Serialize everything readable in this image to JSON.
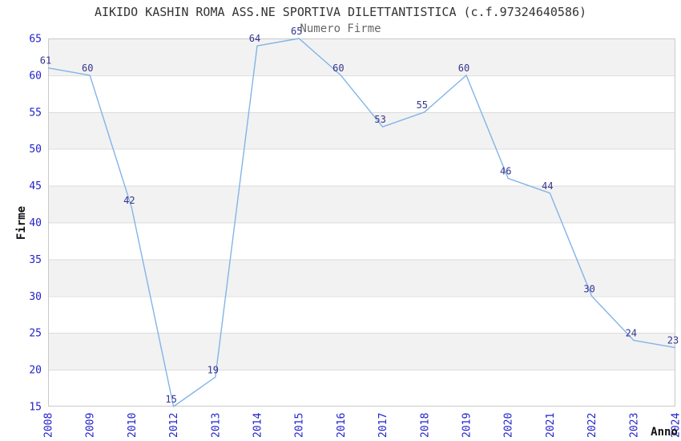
{
  "chart_data": {
    "type": "line",
    "title": "AIKIDO KASHIN ROMA ASS.NE SPORTIVA DILETTANTISTICA (c.f.97324640586)",
    "subtitle": "Numero Firme",
    "xlabel": "Anno",
    "ylabel": "Firme",
    "categories": [
      "2008",
      "2009",
      "2010",
      "2012",
      "2013",
      "2014",
      "2015",
      "2016",
      "2017",
      "2018",
      "2019",
      "2020",
      "2021",
      "2022",
      "2023",
      "2024"
    ],
    "values": [
      61,
      60,
      42,
      15,
      19,
      64,
      65,
      60,
      53,
      55,
      60,
      46,
      44,
      30,
      24,
      23
    ],
    "yticks": [
      15,
      20,
      25,
      30,
      35,
      40,
      45,
      50,
      55,
      60,
      65
    ],
    "ylim": [
      15,
      65
    ],
    "ytick_step": 5,
    "grid": "horizontal",
    "background_bands": "alternating gray/white every 5 units, gray band at top (60-65)",
    "legend": "none",
    "colors": {
      "line": "#82b4e8",
      "band": "#f2f2f2",
      "gridline": "#dcdcdc",
      "plot_border": "#c9c9c9",
      "tick_labels": "#2222cc",
      "value_labels": "#34348f",
      "title": "#333333",
      "subtitle": "#666666",
      "axis_titles": "#111111"
    }
  }
}
